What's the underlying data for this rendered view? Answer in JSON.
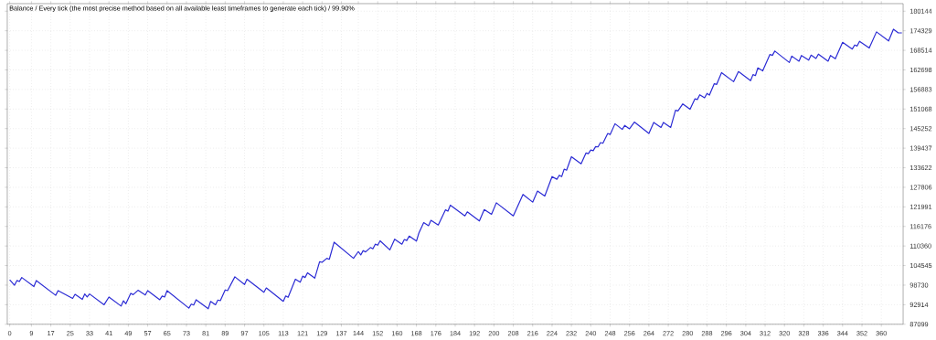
{
  "chart_data": {
    "type": "line",
    "title": "Balance / Every tick (the most precise method based on all available least timeframes to generate each tick) / 99.90%",
    "x": [
      0,
      2,
      3,
      4,
      5,
      10,
      11,
      19,
      20,
      26,
      27,
      30,
      31,
      32,
      33,
      39,
      41,
      46,
      47,
      48,
      50,
      51,
      53,
      56,
      57,
      62,
      63,
      64,
      65,
      74,
      75,
      76,
      77,
      82,
      83,
      85,
      86,
      87,
      89,
      90,
      93,
      97,
      98,
      105,
      106,
      113,
      114,
      115,
      118,
      120,
      121,
      122,
      123,
      126,
      128,
      129,
      131,
      132,
      134,
      142,
      144,
      145,
      146,
      147,
      149,
      150,
      151,
      152,
      153,
      157,
      159,
      162,
      163,
      164,
      165,
      168,
      169,
      171,
      173,
      174,
      177,
      180,
      181,
      182,
      188,
      189,
      194,
      196,
      199,
      201,
      208,
      212,
      216,
      218,
      221,
      224,
      226,
      227,
      228,
      229,
      230,
      232,
      236,
      238,
      239,
      240,
      241,
      242,
      243,
      244,
      245,
      247,
      248,
      250,
      253,
      254,
      256,
      258,
      264,
      266,
      269,
      270,
      273,
      275,
      276,
      278,
      281,
      283,
      284,
      285,
      287,
      288,
      289,
      291,
      292,
      294,
      299,
      301,
      306,
      307,
      308,
      309,
      311,
      314,
      315,
      316,
      322,
      323,
      326,
      327,
      330,
      331,
      333,
      334,
      338,
      339,
      341,
      344,
      348,
      349,
      350,
      351,
      355,
      358,
      363,
      365,
      367,
      368.5
    ],
    "values": [
      100300,
      98700,
      100100,
      99800,
      101000,
      98300,
      100100,
      95700,
      97100,
      94800,
      96000,
      94500,
      96100,
      95200,
      96100,
      92900,
      95200,
      92500,
      94100,
      93200,
      96300,
      95900,
      97200,
      95800,
      97100,
      94400,
      95500,
      95200,
      97100,
      91900,
      93100,
      92800,
      94400,
      91700,
      93900,
      92900,
      94300,
      94100,
      97300,
      97100,
      101200,
      98900,
      100500,
      96600,
      97900,
      93900,
      95500,
      95100,
      100500,
      99600,
      101400,
      101000,
      102400,
      100800,
      105700,
      105500,
      106700,
      106400,
      111500,
      106700,
      108700,
      107700,
      109000,
      108600,
      109900,
      109500,
      110900,
      110600,
      111900,
      109200,
      112400,
      110900,
      112300,
      112000,
      113300,
      111800,
      114200,
      117300,
      116400,
      118000,
      116600,
      121100,
      120700,
      122500,
      119300,
      120500,
      117800,
      121200,
      119800,
      123200,
      119300,
      125700,
      123400,
      126700,
      125200,
      131000,
      130200,
      131400,
      131000,
      133200,
      132900,
      136900,
      134800,
      138000,
      137800,
      138900,
      138700,
      139900,
      139800,
      141100,
      140900,
      143800,
      143500,
      146700,
      145000,
      146200,
      145200,
      147200,
      143800,
      147100,
      145600,
      147100,
      145600,
      150700,
      150500,
      152600,
      151000,
      154100,
      153900,
      155300,
      154400,
      155700,
      155200,
      158600,
      158400,
      161900,
      159200,
      162200,
      159500,
      161300,
      161000,
      163300,
      162400,
      167300,
      167000,
      168300,
      164900,
      166800,
      165300,
      167000,
      165600,
      167100,
      166100,
      167400,
      165300,
      167000,
      166000,
      170900,
      168900,
      170100,
      169800,
      171200,
      169200,
      174000,
      171300,
      174800,
      173700,
      173700
    ],
    "color": "#2a2ad4",
    "xlim": [
      -1,
      369
    ],
    "ylim": [
      87099,
      182400
    ],
    "xticks": [
      0,
      9,
      17,
      25,
      33,
      41,
      49,
      57,
      65,
      73,
      81,
      89,
      97,
      105,
      113,
      121,
      129,
      137,
      144,
      152,
      160,
      168,
      176,
      184,
      192,
      200,
      208,
      216,
      224,
      232,
      240,
      248,
      256,
      264,
      272,
      280,
      288,
      296,
      304,
      312,
      320,
      328,
      336,
      344,
      352,
      360
    ],
    "yticks": [
      87099,
      92914,
      98730,
      104545,
      110360,
      116176,
      121991,
      127806,
      133622,
      139437,
      145252,
      151068,
      156883,
      162698,
      168514,
      174329,
      180144
    ],
    "grid": true
  }
}
